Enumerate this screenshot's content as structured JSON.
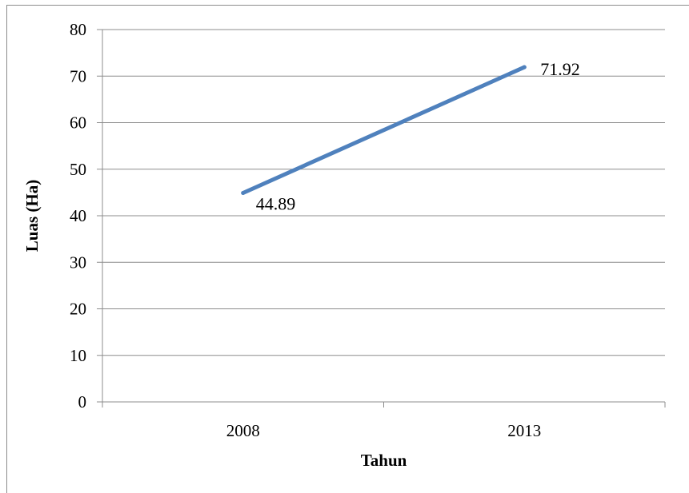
{
  "chart_data": {
    "type": "line",
    "categories": [
      "2008",
      "2013"
    ],
    "series": [
      {
        "values": [
          44.89,
          71.92
        ],
        "color": "#4f81bd"
      }
    ],
    "data_labels": [
      "44.89",
      "71.92"
    ],
    "title": "",
    "xlabel": "Tahun",
    "ylabel": "Luas (Ha)",
    "ylim": [
      0,
      80
    ],
    "yticks": [
      "0",
      "10",
      "20",
      "30",
      "40",
      "50",
      "60",
      "70",
      "80"
    ],
    "grid": true,
    "legend": "none"
  }
}
